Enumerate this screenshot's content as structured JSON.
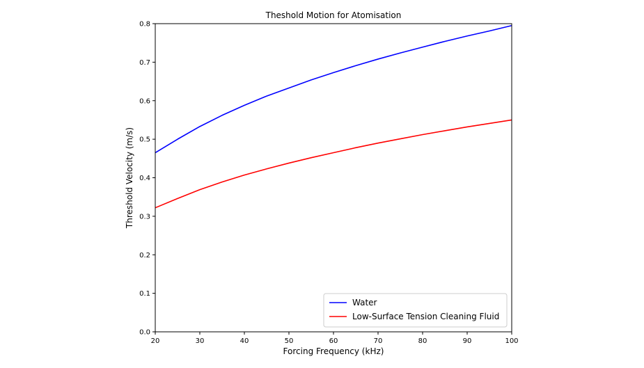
{
  "chart_data": {
    "type": "line",
    "title": "Theshold Motion for Atomisation",
    "xlabel": "Forcing Frequency (kHz)",
    "ylabel": "Threshold Velocity (m/s)",
    "xlim": [
      20,
      100
    ],
    "ylim": [
      0.0,
      0.8
    ],
    "x_ticks": [
      "20",
      "30",
      "40",
      "50",
      "60",
      "70",
      "80",
      "90",
      "100"
    ],
    "y_ticks": [
      "0.0",
      "0.1",
      "0.2",
      "0.3",
      "0.4",
      "0.5",
      "0.6",
      "0.7",
      "0.8"
    ],
    "grid": false,
    "legend_position": "bottom-right",
    "x": [
      20,
      25,
      30,
      35,
      40,
      45,
      50,
      55,
      60,
      65,
      70,
      75,
      80,
      85,
      90,
      95,
      100
    ],
    "series": [
      {
        "name": "Water",
        "color": "#0000ff",
        "values": [
          0.465,
          0.5,
          0.533,
          0.562,
          0.588,
          0.612,
          0.633,
          0.654,
          0.673,
          0.691,
          0.708,
          0.724,
          0.739,
          0.754,
          0.768,
          0.781,
          0.795
        ]
      },
      {
        "name": "Low-Surface Tension Cleaning Fluid",
        "color": "#ff0000",
        "values": [
          0.322,
          0.346,
          0.369,
          0.389,
          0.407,
          0.423,
          0.438,
          0.452,
          0.465,
          0.478,
          0.49,
          0.501,
          0.512,
          0.522,
          0.532,
          0.541,
          0.55
        ]
      }
    ]
  }
}
